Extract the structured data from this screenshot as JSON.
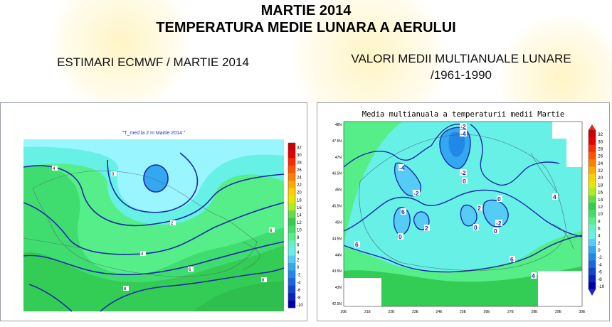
{
  "header": {
    "title": "MARTIE 2014",
    "subtitle": "TEMPERATURA MEDIE LUNARA A AERULUI"
  },
  "left_heading": "ESTIMARI ECMWF / MARTIE 2014",
  "right_heading": {
    "line1": "VALORI MEDII MULTIANUALE LUNARE",
    "line2": "/1961-1990"
  },
  "left_map": {
    "title": "\"T_med la 2 m Martie 2014 \"",
    "colorbar_labels": [
      "32",
      "30",
      "28",
      "26",
      "24",
      "22",
      "20",
      "18",
      "16",
      "14",
      "12",
      "10",
      "8",
      "6",
      "4",
      "2",
      "0",
      "-2",
      "-4",
      "-6",
      "-8",
      "-10"
    ],
    "contour_labels": [
      "0",
      "2",
      "4",
      "6",
      "8"
    ]
  },
  "right_map": {
    "title": "Media multianuala a temperaturii medii Martie",
    "lat_labels": [
      "48N",
      "47.5N",
      "47N",
      "46.5N",
      "46N",
      "45.5N",
      "45N",
      "44.5N",
      "44N",
      "43.5N",
      "43N",
      "42.5N"
    ],
    "lon_labels": [
      "20E",
      "21E",
      "22E",
      "23E",
      "24E",
      "25E",
      "26E",
      "27E",
      "28E",
      "29E",
      "30E"
    ],
    "colorbar_labels": [
      "32",
      "30",
      "28",
      "26",
      "24",
      "22",
      "20",
      "18",
      "16",
      "14",
      "12",
      "10",
      "8",
      "6",
      "4",
      "2",
      "0",
      "-2",
      "-4",
      "-6",
      "-8",
      "-10"
    ],
    "contour_labels": [
      "-2",
      "-4",
      "0",
      "2",
      "4",
      "6"
    ]
  },
  "colors": {
    "green_dark": "#33cc55",
    "green_light": "#55ee88",
    "cyan": "#66f0e6",
    "cyan_light": "#99f5ff",
    "blue_cold": "#33a8f0",
    "contour": "#1a2aa8"
  }
}
